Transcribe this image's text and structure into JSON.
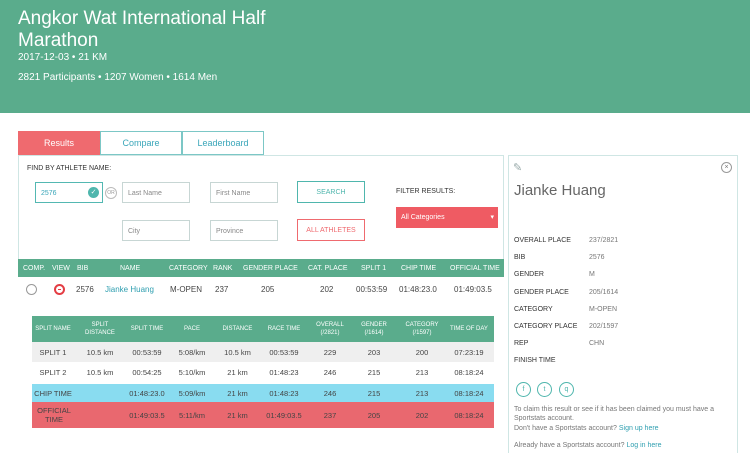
{
  "event": {
    "title": "Angkor Wat International Half Marathon",
    "date_distance": "2017-12-03 • 21 KM",
    "participants": "2821 Participants • 1207 Women • 1614 Men"
  },
  "tabs": [
    "Results",
    "Compare",
    "Leaderboard"
  ],
  "search": {
    "find_label": "FIND BY ATHLETE NAME:",
    "bib_value": "2576",
    "or": "OR",
    "last_name_placeholder": "Last Name",
    "first_name_placeholder": "First Name",
    "city_placeholder": "City",
    "province_placeholder": "Province",
    "search_button": "SEARCH",
    "all_athletes_button": "ALL ATHLETES",
    "filter_label": "FILTER RESULTS:",
    "filter_value": "All Categories",
    "filter_caret": "▾"
  },
  "results": {
    "headers": [
      "COMP.",
      "VIEW",
      "BIB",
      "NAME",
      "CATEGORY",
      "RANK",
      "GENDER PLACE",
      "CAT. PLACE",
      "SPLIT 1",
      "CHIP TIME",
      "OFFICIAL TIME"
    ],
    "row": {
      "bib": "2576",
      "name": "Jianke Huang",
      "category": "M-OPEN",
      "rank": "237",
      "gender_place": "205",
      "cat_place": "202",
      "split1": "00:53:59",
      "chip_time": "01:48:23.0",
      "official_time": "01:49:03.5"
    }
  },
  "splits": {
    "headers": [
      "SPLIT NAME",
      "SPLIT DISTANCE",
      "SPLIT TIME",
      "PACE",
      "DISTANCE",
      "RACE TIME",
      "OVERALL (/2821)",
      "GENDER (/1614)",
      "CATEGORY (/1597)",
      "TIME OF DAY"
    ],
    "rows": [
      [
        "SPLIT 1",
        "10.5 km",
        "00:53:59",
        "5:08/km",
        "10.5 km",
        "00:53:59",
        "229",
        "203",
        "200",
        "07:23:19"
      ],
      [
        "SPLIT 2",
        "10.5 km",
        "00:54:25",
        "5:10/km",
        "21 km",
        "01:48:23",
        "246",
        "215",
        "213",
        "08:18:24"
      ],
      [
        "CHIP TIME",
        "",
        "01:48:23.0",
        "5:09/km",
        "21 km",
        "01:48:23",
        "246",
        "215",
        "213",
        "08:18:24"
      ],
      [
        "OFFICIAL TIME",
        "",
        "01:49:03.5",
        "5:11/km",
        "21 km",
        "01:49:03.5",
        "237",
        "205",
        "202",
        "08:18:24"
      ]
    ]
  },
  "athlete": {
    "name": "Jianke Huang",
    "fields": [
      {
        "label": "OVERALL PLACE",
        "value": "237/2821"
      },
      {
        "label": "BIB",
        "value": "2576"
      },
      {
        "label": "GENDER",
        "value": "M"
      },
      {
        "label": "GENDER PLACE",
        "value": "205/1614"
      },
      {
        "label": "CATEGORY",
        "value": "M-OPEN"
      },
      {
        "label": "CATEGORY PLACE",
        "value": "202/1597"
      },
      {
        "label": "REP",
        "value": "CHN"
      },
      {
        "label": "FINISH TIME",
        "value": ""
      }
    ],
    "social": [
      "f",
      "t",
      "q"
    ],
    "claim_text": "To claim this result or see if it has been claimed you must have a Sportstats account.",
    "no_account_text": "Don't have a Sportstats account?",
    "sign_up": "Sign up here",
    "have_account_text": "Already have a Sportstats account?",
    "log_in": "Log in here"
  },
  "icons": {
    "check": "✓",
    "edit": "✎",
    "close": "×"
  }
}
